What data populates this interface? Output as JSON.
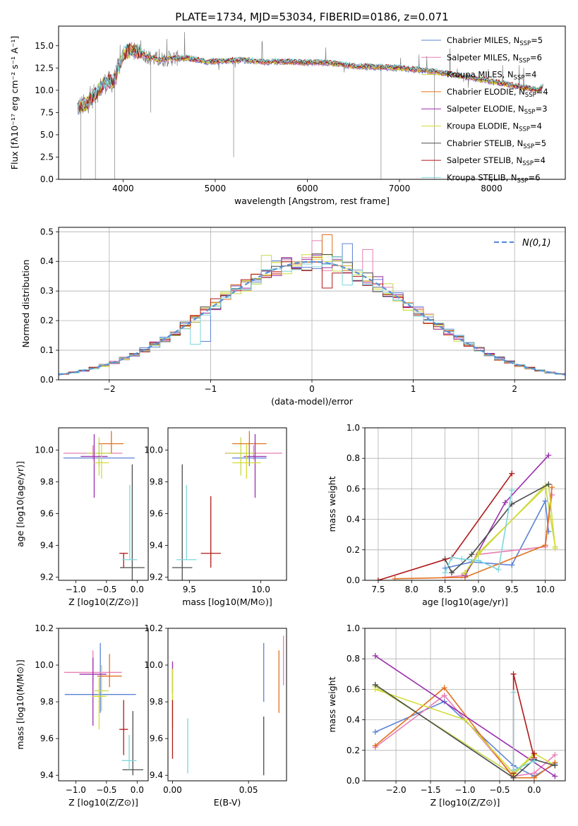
{
  "figure": {
    "title": "PLATE=1734, MJD=53034, FIBERID=0186, z=0.071"
  },
  "chart_data": [
    {
      "id": "spectrum",
      "type": "line",
      "xlabel": "wavelength [Angstrom, rest frame]",
      "ylabel": "Flux [fλ10⁻¹⁷ erg cm⁻² s⁻¹ A⁻¹]",
      "xlim": [
        3300,
        8800
      ],
      "ylim": [
        0,
        17.2
      ],
      "xticks": [
        4000,
        5000,
        6000,
        7000,
        8000
      ],
      "yticks": [
        0.0,
        2.5,
        5.0,
        7.5,
        10.0,
        12.5,
        15.0
      ],
      "grid": false,
      "legend_position": "upper-right",
      "observed_color": "#808080",
      "continuum": [
        [
          3500,
          8.1
        ],
        [
          3600,
          8.4
        ],
        [
          3700,
          9.6
        ],
        [
          3800,
          10.8
        ],
        [
          3900,
          11.0
        ],
        [
          4000,
          14.0
        ],
        [
          4100,
          14.6
        ],
        [
          4200,
          14.2
        ],
        [
          4300,
          13.6
        ],
        [
          4400,
          13.4
        ],
        [
          4500,
          13.6
        ],
        [
          4700,
          13.6
        ],
        [
          4900,
          13.2
        ],
        [
          5100,
          13.3
        ],
        [
          5300,
          13.4
        ],
        [
          5500,
          13.2
        ],
        [
          5800,
          13.2
        ],
        [
          6000,
          13.1
        ],
        [
          6200,
          13.1
        ],
        [
          6500,
          12.7
        ],
        [
          6800,
          12.6
        ],
        [
          7000,
          12.5
        ],
        [
          7300,
          12.2
        ],
        [
          7600,
          11.7
        ],
        [
          7900,
          11.2
        ],
        [
          8100,
          10.8
        ],
        [
          8300,
          10.4
        ],
        [
          8500,
          10.0
        ],
        [
          8560,
          10.4
        ]
      ],
      "absorption_features": [
        [
          3540,
          0.0
        ],
        [
          3700,
          0.0
        ],
        [
          3910,
          0.0
        ],
        [
          4300,
          7.5
        ],
        [
          5200,
          2.5
        ],
        [
          6800,
          0.0
        ],
        [
          7380,
          0.0
        ]
      ],
      "series": [
        {
          "name": "Chabrier MILES, N_SSP=5",
          "legend_main": "Chabrier MILES, N",
          "legend_sub": "SSP",
          "legend_end": "=5",
          "color": "#5b83d6"
        },
        {
          "name": "Salpeter MILES, N_SSP=6",
          "legend_main": "Salpeter MILES, N",
          "legend_sub": "SSP",
          "legend_end": "=6",
          "color": "#e87fb5"
        },
        {
          "name": "Kroupa MILES, N_SSP=4",
          "legend_main": "Kroupa MILES, N",
          "legend_sub": "SSP",
          "legend_end": "=4",
          "color": "#c6d94a"
        },
        {
          "name": "Chabrier ELODIE, N_SSP=4",
          "legend_main": "Chabrier ELODIE, N",
          "legend_sub": "SSP",
          "legend_end": "=4",
          "color": "#e0701e"
        },
        {
          "name": "Salpeter ELODIE, N_SSP=3",
          "legend_main": "Salpeter ELODIE, N",
          "legend_sub": "SSP",
          "legend_end": "=3",
          "color": "#9b2fae"
        },
        {
          "name": "Kroupa ELODIE, N_SSP=4",
          "legend_main": "Kroupa ELODIE, N",
          "legend_sub": "SSP",
          "legend_end": "=4",
          "color": "#d4dc36"
        },
        {
          "name": "Chabrier STELIB, N_SSP=5",
          "legend_main": "Chabrier STELIB, N",
          "legend_sub": "SSP",
          "legend_end": "=5",
          "color": "#4d4d4d"
        },
        {
          "name": "Salpeter STELIB, N_SSP=4",
          "legend_main": "Salpeter STELIB, N",
          "legend_sub": "SSP",
          "legend_end": "=4",
          "color": "#b01818"
        },
        {
          "name": "Kroupa STELIB, N_SSP=6",
          "legend_main": "Kroupa STELIB, N",
          "legend_sub": "SSP",
          "legend_end": "=6",
          "color": "#7dd6dc"
        }
      ]
    },
    {
      "id": "residuals",
      "type": "histogram",
      "xlabel": "(data-model)/error",
      "ylabel": "Normed distribution",
      "xlim": [
        -2.5,
        2.5
      ],
      "ylim": [
        0,
        0.515
      ],
      "xticks": [
        -2,
        -1,
        0,
        1,
        2
      ],
      "yticks": [
        0.0,
        0.1,
        0.2,
        0.3,
        0.4,
        0.5
      ],
      "grid": true,
      "bin_width": 0.1,
      "legend_position": "upper-right",
      "reference_curve": {
        "name": "N(0,1)",
        "color": "#5b8fd6",
        "style": "dashed"
      },
      "series_colors": [
        "#5b83d6",
        "#e87fb5",
        "#c6d94a",
        "#e0701e",
        "#9b2fae",
        "#d4dc36",
        "#4d4d4d",
        "#b01818",
        "#7dd6dc"
      ],
      "highlight_bins": [
        {
          "x": 0.15,
          "y": 0.49,
          "color": "#e0701e"
        },
        {
          "x": 0.05,
          "y": 0.47,
          "color": "#e87fb5"
        },
        {
          "x": 0.35,
          "y": 0.46,
          "color": "#5b83d6"
        },
        {
          "x": 0.55,
          "y": 0.44,
          "color": "#e87fb5"
        },
        {
          "x": -0.45,
          "y": 0.42,
          "color": "#c6d94a"
        },
        {
          "x": 0.15,
          "y": 0.31,
          "color": "#b01818"
        },
        {
          "x": 0.35,
          "y": 0.32,
          "color": "#7dd6dc"
        },
        {
          "x": -1.15,
          "y": 0.12,
          "color": "#7dd6dc"
        },
        {
          "x": -1.05,
          "y": 0.13,
          "color": "#5b83d6"
        }
      ]
    },
    {
      "id": "age-vs-Z",
      "type": "errorbar",
      "xlabel": "Z [log10(Z/Z⊙)]",
      "ylabel": "age [log10(age/yr)]",
      "xlim": [
        -1.28,
        0.18
      ],
      "ylim": [
        9.18,
        10.14
      ],
      "xticks": [
        -1.0,
        -0.5,
        0.0
      ],
      "yticks": [
        9.2,
        9.4,
        9.6,
        9.8,
        10.0
      ],
      "points": [
        {
          "x": -0.62,
          "y": 9.95,
          "xerr": 0.58,
          "yerr": [
            0.05,
            0.1
          ],
          "color": "#5b83d6"
        },
        {
          "x": -0.72,
          "y": 9.98,
          "xerr": 0.48,
          "yerr": [
            0.04,
            0.05
          ],
          "color": "#e87fb5"
        },
        {
          "x": -0.62,
          "y": 9.98,
          "xerr": 0.2,
          "yerr": [
            0.14,
            0.1
          ],
          "color": "#c6d94a"
        },
        {
          "x": -0.42,
          "y": 10.04,
          "xerr": 0.2,
          "yerr": [
            0.06,
            0.08
          ],
          "color": "#e0701e"
        },
        {
          "x": -0.7,
          "y": 9.96,
          "xerr": 0.22,
          "yerr": [
            0.26,
            0.14
          ],
          "color": "#9b2fae"
        },
        {
          "x": -0.58,
          "y": 9.92,
          "xerr": 0.12,
          "yerr": [
            0.1,
            0.12
          ],
          "color": "#d4dc36"
        },
        {
          "x": -0.08,
          "y": 9.26,
          "xerr": 0.2,
          "yerr": [
            0.1,
            0.65
          ],
          "color": "#4d4d4d"
        },
        {
          "x": -0.22,
          "y": 9.35,
          "xerr": 0.07,
          "yerr": [
            0.09,
            0.0
          ],
          "color": "#b01818"
        },
        {
          "x": -0.12,
          "y": 9.31,
          "xerr": 0.12,
          "yerr": [
            0.0,
            0.47
          ],
          "color": "#7dd6dc"
        }
      ]
    },
    {
      "id": "age-vs-mass",
      "type": "errorbar",
      "xlabel": "mass [log10(M/M⊙)]",
      "ylabel": "",
      "xlim": [
        9.35,
        10.18
      ],
      "ylim": [
        9.18,
        10.14
      ],
      "xticks": [
        9.5,
        10.0
      ],
      "yticks": [
        9.2,
        9.4,
        9.6,
        9.8,
        10.0
      ],
      "points": [
        {
          "x": 9.92,
          "y": 9.95,
          "xerr": 0.12,
          "yerr": [
            0.05,
            0.1
          ],
          "color": "#5b83d6"
        },
        {
          "x": 9.95,
          "y": 9.98,
          "xerr": 0.2,
          "yerr": [
            0.04,
            0.05
          ],
          "color": "#e87fb5"
        },
        {
          "x": 9.86,
          "y": 9.98,
          "xerr": 0.1,
          "yerr": [
            0.14,
            0.1
          ],
          "color": "#c6d94a"
        },
        {
          "x": 9.92,
          "y": 10.04,
          "xerr": 0.12,
          "yerr": [
            0.06,
            0.08
          ],
          "color": "#e0701e"
        },
        {
          "x": 9.96,
          "y": 9.96,
          "xerr": 0.08,
          "yerr": [
            0.26,
            0.14
          ],
          "color": "#9b2fae"
        },
        {
          "x": 9.9,
          "y": 9.92,
          "xerr": 0.1,
          "yerr": [
            0.1,
            0.12
          ],
          "color": "#d4dc36"
        },
        {
          "x": 9.45,
          "y": 9.26,
          "xerr": 0.07,
          "yerr": [
            0.1,
            0.65
          ],
          "color": "#4d4d4d"
        },
        {
          "x": 9.65,
          "y": 9.35,
          "xerr": 0.07,
          "yerr": [
            0.09,
            0.36
          ],
          "color": "#b01818"
        },
        {
          "x": 9.48,
          "y": 9.31,
          "xerr": 0.07,
          "yerr": [
            0.0,
            0.47
          ],
          "color": "#7dd6dc"
        }
      ]
    },
    {
      "id": "weight-vs-age",
      "type": "line",
      "xlabel": "age [log10(age/yr)]",
      "ylabel": "mass weight",
      "xlim": [
        7.3,
        10.3
      ],
      "ylim": [
        0,
        1
      ],
      "xticks": [
        7.5,
        8.0,
        8.5,
        9.0,
        9.5,
        10.0
      ],
      "yticks": [
        0.0,
        0.2,
        0.4,
        0.6,
        0.8,
        1.0
      ],
      "grid": true,
      "series": [
        {
          "color": "#5b83d6",
          "x": [
            8.5,
            8.9,
            9.5,
            10.0,
            10.05
          ],
          "y": [
            0.08,
            0.12,
            0.1,
            0.52,
            0.32
          ]
        },
        {
          "color": "#e87fb5",
          "x": [
            8.5,
            8.75,
            8.8,
            9.0,
            10.0,
            10.1
          ],
          "y": [
            0.02,
            0.03,
            0.05,
            0.17,
            0.22,
            0.56
          ]
        },
        {
          "color": "#c6d94a",
          "x": [
            8.8,
            9.0,
            10.0,
            10.15
          ],
          "y": [
            0.04,
            0.17,
            0.62,
            0.22
          ]
        },
        {
          "color": "#e0701e",
          "x": [
            7.75,
            8.8,
            10.0,
            10.1
          ],
          "y": [
            0.01,
            0.02,
            0.23,
            0.61
          ]
        },
        {
          "color": "#9b2fae",
          "x": [
            8.8,
            9.4,
            10.05
          ],
          "y": [
            0.03,
            0.51,
            0.82
          ]
        },
        {
          "color": "#d4dc36",
          "x": [
            8.8,
            9.0,
            10.05,
            10.15
          ],
          "y": [
            0.05,
            0.18,
            0.63,
            0.21
          ]
        },
        {
          "color": "#4d4d4d",
          "x": [
            8.5,
            8.6,
            8.9,
            9.5,
            10.05
          ],
          "y": [
            0.14,
            0.05,
            0.17,
            0.5,
            0.63
          ]
        },
        {
          "color": "#b01818",
          "x": [
            7.5,
            8.6,
            9.5
          ],
          "y": [
            0.0,
            0.15,
            0.7
          ]
        },
        {
          "color": "#7dd6dc",
          "x": [
            8.5,
            8.6,
            8.75,
            9.0,
            9.3,
            9.5
          ],
          "y": [
            0.05,
            0.15,
            0.14,
            0.13,
            0.07,
            0.59
          ]
        }
      ]
    },
    {
      "id": "mass-vs-Z",
      "type": "errorbar",
      "xlabel": "Z [log10(Z/Z⊙)]",
      "ylabel": "mass [log10(M/M⊙)]",
      "xlim": [
        -1.28,
        0.18
      ],
      "ylim": [
        9.37,
        10.2
      ],
      "xticks": [
        -1.0,
        -0.5,
        0.0
      ],
      "yticks": [
        9.4,
        9.6,
        9.8,
        10.0,
        10.2
      ],
      "points": [
        {
          "x": -0.6,
          "y": 9.84,
          "xerr": 0.58,
          "yerr": [
            0.1,
            0.28
          ],
          "color": "#5b83d6"
        },
        {
          "x": -0.72,
          "y": 9.96,
          "xerr": 0.47,
          "yerr": [
            0.05,
            0.12
          ],
          "color": "#e87fb5"
        },
        {
          "x": -0.58,
          "y": 9.86,
          "xerr": 0.12,
          "yerr": [
            0.11,
            0.14
          ],
          "color": "#c6d94a"
        },
        {
          "x": -0.45,
          "y": 9.94,
          "xerr": 0.2,
          "yerr": [
            0.06,
            0.12
          ],
          "color": "#e0701e"
        },
        {
          "x": -0.72,
          "y": 9.95,
          "xerr": 0.22,
          "yerr": [
            0.28,
            0.09
          ],
          "color": "#9b2fae"
        },
        {
          "x": -0.62,
          "y": 9.83,
          "xerr": 0.12,
          "yerr": [
            0.18,
            0.1
          ],
          "color": "#d4dc36"
        },
        {
          "x": -0.07,
          "y": 9.43,
          "xerr": 0.17,
          "yerr": [
            0.03,
            0.32
          ],
          "color": "#4d4d4d"
        },
        {
          "x": -0.22,
          "y": 9.65,
          "xerr": 0.07,
          "yerr": [
            0.14,
            0.16
          ],
          "color": "#b01818"
        },
        {
          "x": -0.13,
          "y": 9.48,
          "xerr": 0.12,
          "yerr": [
            0.05,
            0.14
          ],
          "color": "#7dd6dc"
        }
      ]
    },
    {
      "id": "mass-vs-EBV",
      "type": "errorbar",
      "xlabel": "E(B-V)",
      "ylabel": "",
      "xlim": [
        -0.003,
        0.075
      ],
      "ylim": [
        9.37,
        10.2
      ],
      "xticks": [
        0.0,
        0.05
      ],
      "yticks": [
        9.4,
        9.6,
        9.8,
        10.0,
        10.2
      ],
      "points": [
        {
          "x": 0.06,
          "y": 9.96,
          "yerr": [
            0.16,
            0.16
          ],
          "color": "#5b83d6"
        },
        {
          "x": 0.073,
          "y": 10.0,
          "yerr": [
            0.11,
            0.16
          ],
          "color": "#e87fb5"
        },
        {
          "x": 0.0,
          "y": 9.86,
          "yerr": [
            0.2,
            0.15
          ],
          "color": "#c6d94a"
        },
        {
          "x": 0.07,
          "y": 9.9,
          "yerr": [
            0.16,
            0.18
          ],
          "color": "#e0701e"
        },
        {
          "x": 0.0,
          "y": 9.95,
          "yerr": [
            0.1,
            0.07
          ],
          "color": "#9b2fae"
        },
        {
          "x": 0.0,
          "y": 9.83,
          "yerr": [
            0.17,
            0.15
          ],
          "color": "#d4dc36"
        },
        {
          "x": 0.06,
          "y": 9.55,
          "yerr": [
            0.15,
            0.17
          ],
          "color": "#4d4d4d"
        },
        {
          "x": 0.0,
          "y": 9.65,
          "yerr": [
            0.16,
            0.16
          ],
          "color": "#b01818"
        },
        {
          "x": 0.01,
          "y": 9.58,
          "yerr": [
            0.17,
            0.13
          ],
          "color": "#7dd6dc"
        }
      ]
    },
    {
      "id": "weight-vs-Z",
      "type": "line",
      "xlabel": "Z [log10(Z/Z⊙)]",
      "ylabel": "mass weight",
      "xlim": [
        -2.45,
        0.45
      ],
      "ylim": [
        0,
        1
      ],
      "xticks": [
        -2.0,
        -1.5,
        -1.0,
        -0.5,
        0.0
      ],
      "yticks": [
        0.0,
        0.2,
        0.4,
        0.6,
        0.8,
        1.0
      ],
      "grid": true,
      "series": [
        {
          "color": "#5b83d6",
          "x": [
            -2.3,
            -1.3,
            -0.3,
            0.0,
            0.3
          ],
          "y": [
            0.32,
            0.52,
            0.1,
            0.03,
            0.11
          ]
        },
        {
          "color": "#e87fb5",
          "x": [
            -2.3,
            -1.3,
            -0.3,
            0.0,
            0.3
          ],
          "y": [
            0.22,
            0.56,
            0.03,
            0.05,
            0.17
          ]
        },
        {
          "color": "#c6d94a",
          "x": [
            -2.3,
            -0.3,
            0.0
          ],
          "y": [
            0.62,
            0.04,
            0.17
          ]
        },
        {
          "color": "#e0701e",
          "x": [
            -2.3,
            -1.3,
            -0.3,
            0.0,
            0.3
          ],
          "y": [
            0.23,
            0.61,
            0.02,
            0.02,
            0.12
          ]
        },
        {
          "color": "#9b2fae",
          "x": [
            -2.3,
            0.3
          ],
          "y": [
            0.82,
            0.03
          ]
        },
        {
          "color": "#d4dc36",
          "x": [
            -2.3,
            -1.0,
            -0.3,
            0.0,
            0.3
          ],
          "y": [
            0.6,
            0.4,
            0.05,
            0.18,
            0.1
          ]
        },
        {
          "color": "#4d4d4d",
          "x": [
            -2.3,
            -0.3,
            0.0,
            0.3
          ],
          "y": [
            0.63,
            0.02,
            0.14,
            0.1
          ]
        },
        {
          "color": "#b01818",
          "x": [
            -0.3,
            -0.3,
            0.0,
            0.0
          ],
          "y": [
            0.05,
            0.7,
            0.15,
            0.18
          ]
        },
        {
          "color": "#7dd6dc",
          "x": [
            -0.3,
            -0.3,
            0.0
          ],
          "y": [
            0.58,
            0.07,
            0.13
          ]
        }
      ]
    }
  ]
}
